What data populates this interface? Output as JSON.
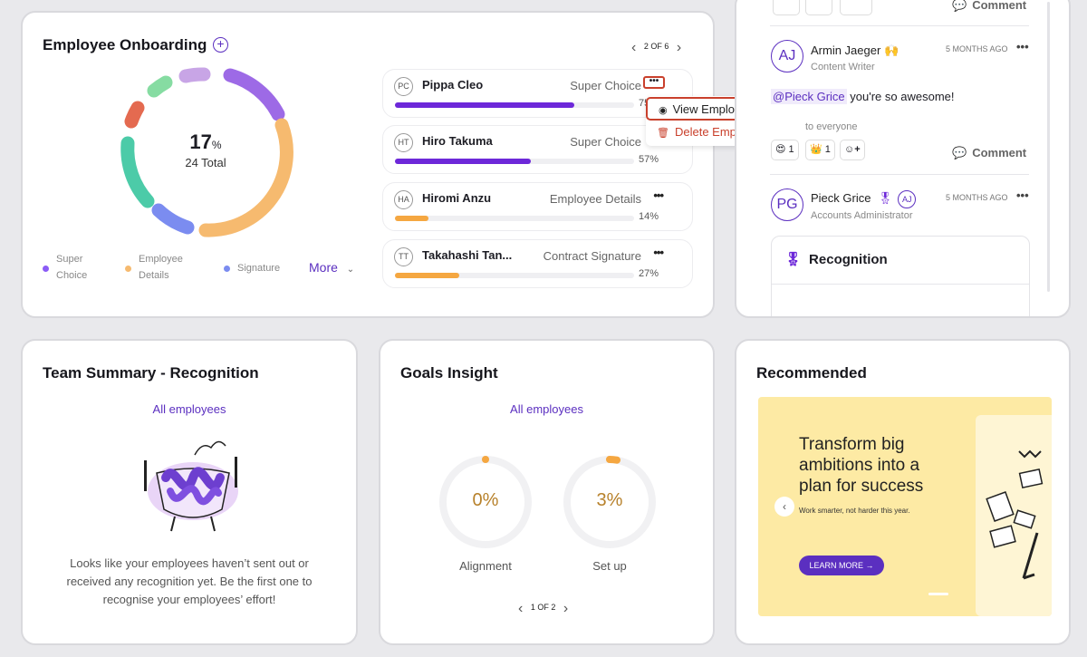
{
  "onboarding": {
    "title": "Employee Onboarding",
    "pager": "2 OF 6",
    "donut_percent": "17",
    "donut_percent_sign": "%",
    "donut_total": "24 Total",
    "legend": [
      {
        "label_line1": "Super",
        "label_line2": "Choice",
        "color": "#8b5cf6"
      },
      {
        "label_line1": "Employee",
        "label_line2": "Details",
        "color": "#f6ba6f"
      },
      {
        "label_line1": "Signature",
        "label_line2": "",
        "color": "#7b8cf0"
      }
    ],
    "more_label": "More",
    "employees": [
      {
        "initials": "PC",
        "name": "Pippa Cleo",
        "stage": "Super Choice",
        "percent": "75%",
        "progress": 0.75,
        "color": "#6d28d9"
      },
      {
        "initials": "HT",
        "name": "Hiro Takuma",
        "stage": "Super Choice",
        "percent": "57%",
        "progress": 0.57,
        "color": "#6d28d9"
      },
      {
        "initials": "HA",
        "name": "Hiromi Anzu",
        "stage": "Employee Details",
        "percent": "14%",
        "progress": 0.14,
        "color": "#f5a741"
      },
      {
        "initials": "TT",
        "name": "Takahashi Tan...",
        "stage": "Contract Signature",
        "percent": "27%",
        "progress": 0.27,
        "color": "#f5a741"
      }
    ],
    "menu": {
      "view": "View Employee File",
      "delete": "Delete Employee"
    }
  },
  "feed": {
    "top_comment": "Comment",
    "post1": {
      "initials": "AJ",
      "name": "Armin Jaeger",
      "role": "Content Writer",
      "time": "5 MONTHS AGO",
      "mention": "@Pieck Grice",
      "message": " you're so awesome!",
      "visibility": "to everyone",
      "reactions": [
        {
          "emoji": "😍",
          "count": "1"
        },
        {
          "emoji": "👑",
          "count": "1"
        }
      ],
      "comment": "Comment"
    },
    "post2": {
      "initials": "PG",
      "name": "Pieck Grice",
      "tag": "AJ",
      "role": "Accounts Administrator",
      "time": "5 MONTHS AGO",
      "card_title": "Recognition"
    }
  },
  "team": {
    "title": "Team Summary - Recognition",
    "filter": "All employees",
    "message": "Looks like your employees haven’t sent out or received any recognition yet. Be the first one to recognise your employees’ effort!"
  },
  "goals": {
    "title": "Goals Insight",
    "filter": "All employees",
    "rings": [
      {
        "value": "0%",
        "label": "Alignment",
        "progress": 0
      },
      {
        "value": "3%",
        "label": "Set up",
        "progress": 0.03
      }
    ],
    "pager": "1 OF 2"
  },
  "recommended": {
    "title": "Recommended",
    "headline": "Transform big ambitions into a plan for success",
    "sub": "Work smarter, not harder this year.",
    "cta": "LEARN MORE →"
  }
}
